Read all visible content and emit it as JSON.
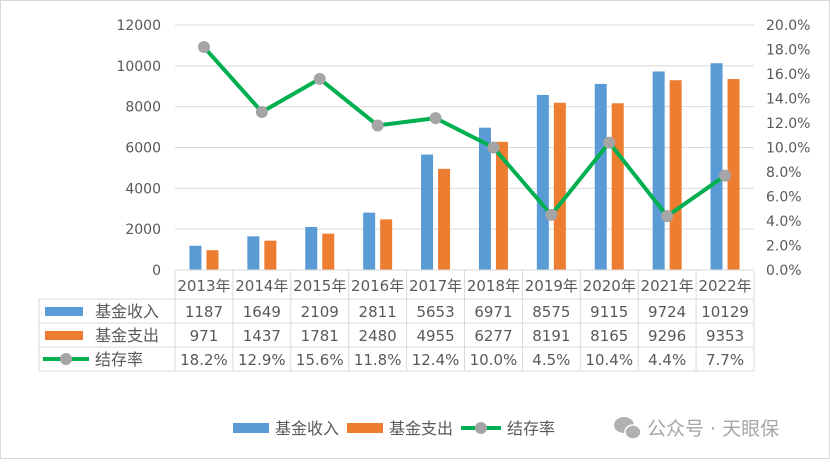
{
  "chart_data": {
    "type": "bar+line",
    "title": "",
    "categories": [
      "2013年",
      "2014年",
      "2015年",
      "2016年",
      "2017年",
      "2018年",
      "2019年",
      "2020年",
      "2021年",
      "2022年"
    ],
    "series": [
      {
        "name": "基金收入",
        "type": "bar",
        "axis": "left",
        "color": "#5B9BD5",
        "values": [
          1187,
          1649,
          2109,
          2811,
          5653,
          6971,
          8575,
          9115,
          9724,
          10129
        ],
        "labels": [
          "1187",
          "1649",
          "2109",
          "2811",
          "5653",
          "6971",
          "8575",
          "9115",
          "9724",
          "10129"
        ]
      },
      {
        "name": "基金支出",
        "type": "bar",
        "axis": "left",
        "color": "#ED7D31",
        "values": [
          971,
          1437,
          1781,
          2480,
          4955,
          6277,
          8191,
          8165,
          9296,
          9353
        ],
        "labels": [
          "971",
          "1437",
          "1781",
          "2480",
          "4955",
          "6277",
          "8191",
          "8165",
          "9296",
          "9353"
        ]
      },
      {
        "name": "结存率",
        "type": "line",
        "axis": "right",
        "color": "#00B050",
        "marker_color": "#A5A5A5",
        "values": [
          18.2,
          12.9,
          15.6,
          11.8,
          12.4,
          10.0,
          4.5,
          10.4,
          4.4,
          7.7
        ],
        "labels": [
          "18.2%",
          "12.9%",
          "15.6%",
          "11.8%",
          "12.4%",
          "10.0%",
          "4.5%",
          "10.4%",
          "4.4%",
          "7.7%"
        ]
      }
    ],
    "y_left": {
      "min": 0,
      "max": 12000,
      "step": 2000,
      "ticks": [
        "0",
        "2000",
        "4000",
        "6000",
        "8000",
        "10000",
        "12000"
      ]
    },
    "y_right": {
      "min": 0,
      "max": 20,
      "step": 2,
      "ticks": [
        "0.0%",
        "2.0%",
        "4.0%",
        "6.0%",
        "8.0%",
        "10.0%",
        "12.0%",
        "14.0%",
        "16.0%",
        "18.0%",
        "20.0%"
      ]
    },
    "xlabel": "",
    "ylabel": "",
    "grid": true,
    "data_table": true,
    "legend_position": "bottom"
  },
  "legend": {
    "items": [
      "基金收入",
      "基金支出",
      "结存率"
    ]
  },
  "watermark": {
    "text": "公众号 · 天眼保",
    "icon": "wechat-icon"
  }
}
